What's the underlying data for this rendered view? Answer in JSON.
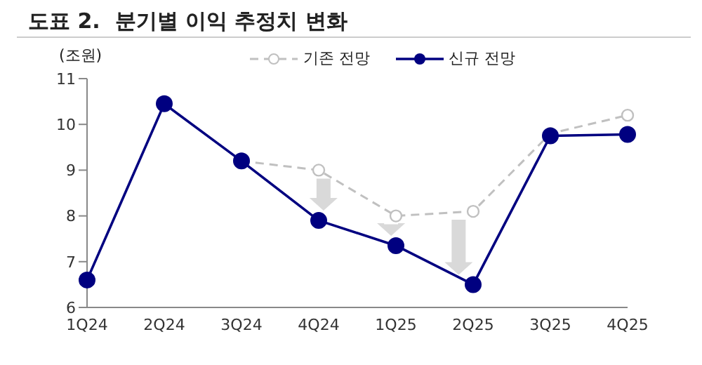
{
  "chart_data": {
    "type": "line",
    "title": "도표 2.  분기별 이익 추정치 변화",
    "ylabel": "(조원)",
    "categories": [
      "1Q24",
      "2Q24",
      "3Q24",
      "4Q24",
      "1Q25",
      "2Q25",
      "3Q25",
      "4Q25"
    ],
    "series": [
      {
        "name": "기존 전망",
        "color": "#c0c0c0",
        "line_style": "dashed",
        "marker": "circle",
        "values": [
          null,
          null,
          9.2,
          9.0,
          8.0,
          8.1,
          9.8,
          10.2
        ]
      },
      {
        "name": "신규 전망",
        "color": "#000080",
        "line_style": "solid",
        "marker": "circle",
        "values": [
          6.6,
          10.45,
          9.2,
          7.9,
          7.35,
          6.5,
          9.75,
          9.78
        ]
      }
    ],
    "ylim": [
      6,
      11
    ],
    "yticks": [
      6,
      7,
      8,
      9,
      10,
      11
    ],
    "legend": "top"
  }
}
